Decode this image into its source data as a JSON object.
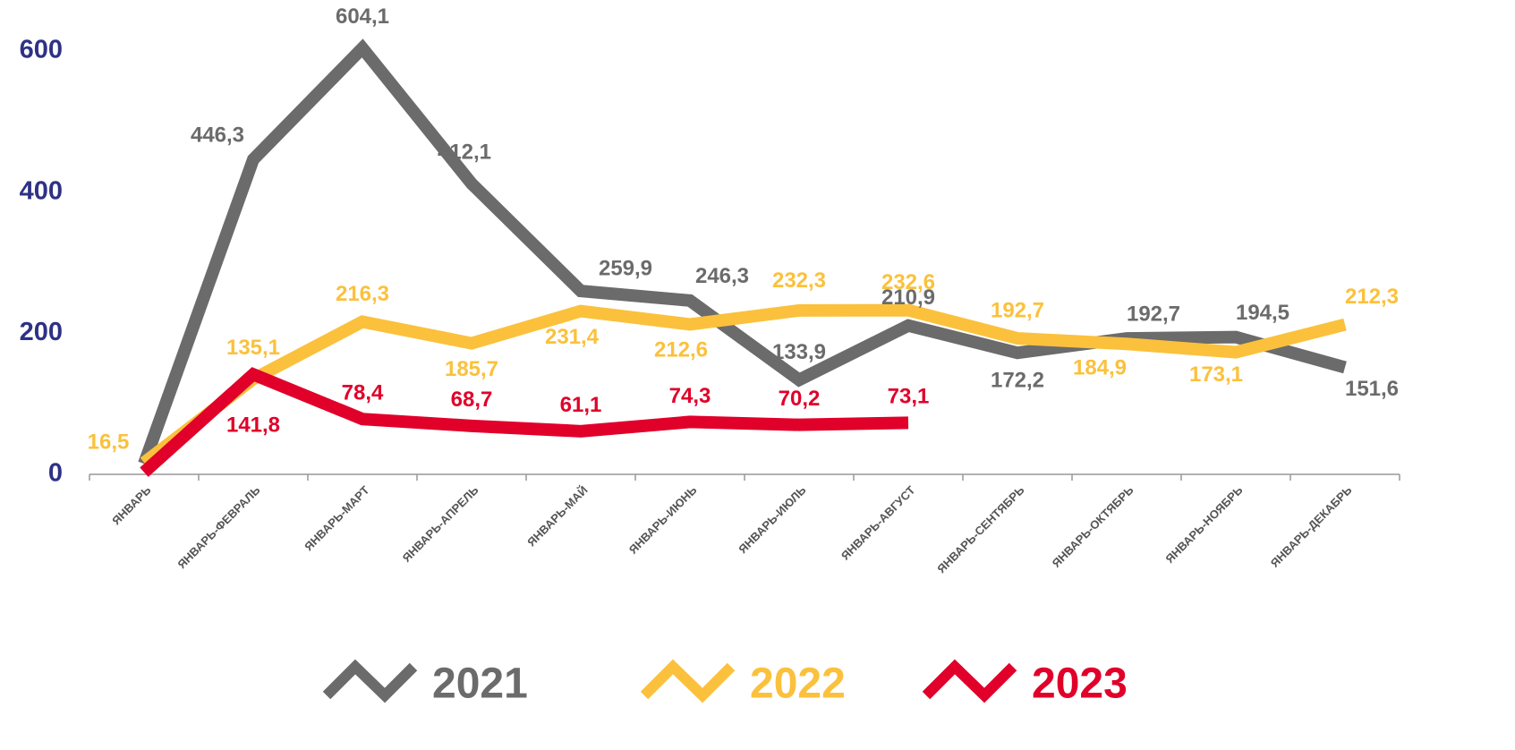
{
  "chart_data": {
    "type": "line",
    "categories": [
      "ЯНВАРЬ",
      "ЯНВАРЬ-ФЕВРАЛЬ",
      "ЯНВАРЬ-МАРТ",
      "ЯНВАРЬ-АПРЕЛЬ",
      "ЯНВАРЬ-МАЙ",
      "ЯНВАРЬ-ИЮНЬ",
      "ЯНВАРЬ-ИЮЛЬ",
      "ЯНВАРЬ-АВГУСТ",
      "ЯНВАРЬ-СЕНТЯБРЬ",
      "ЯНВАРЬ-ОКТЯБРЬ",
      "ЯНВАРЬ-НОЯБРЬ",
      "ЯНВАРЬ-ДЕКАБРЬ"
    ],
    "series": [
      {
        "name": "2021",
        "color": "#6b6b6b",
        "values": [
          15,
          446.3,
          604.1,
          412.1,
          259.9,
          246.3,
          133.9,
          210.9,
          172.2,
          192.7,
          194.5,
          151.6
        ],
        "value_labels": [
          null,
          "446,3",
          "604,1",
          "412,1",
          "259,9",
          "246,3",
          "133,9",
          "210,9",
          "172,2",
          "192,7",
          "194,5",
          "151,6"
        ]
      },
      {
        "name": "2022",
        "color": "#fbc13c",
        "values": [
          16.5,
          135.1,
          216.3,
          185.7,
          231.4,
          212.6,
          232.3,
          232.6,
          192.7,
          184.9,
          173.1,
          212.3
        ],
        "value_labels": [
          "16,5",
          "135,1",
          "216,3",
          "185,7",
          "231,4",
          "212,6",
          "232,3",
          "232,6",
          "192,7",
          "184,9",
          "173,1",
          "212,3"
        ]
      },
      {
        "name": "2023",
        "color": "#e0002a",
        "values": [
          3,
          141.8,
          78.4,
          68.7,
          61.1,
          74.3,
          70.2,
          73.1,
          null,
          null,
          null,
          null
        ],
        "value_labels": [
          null,
          "141,8",
          "78,4",
          "68,7",
          "61,1",
          "74,3",
          "70,2",
          "73,1",
          null,
          null,
          null,
          null
        ]
      }
    ],
    "ylim": [
      0,
      600
    ],
    "yticks": [
      0,
      200,
      400,
      600
    ],
    "grid": false,
    "legend": "bottom"
  }
}
